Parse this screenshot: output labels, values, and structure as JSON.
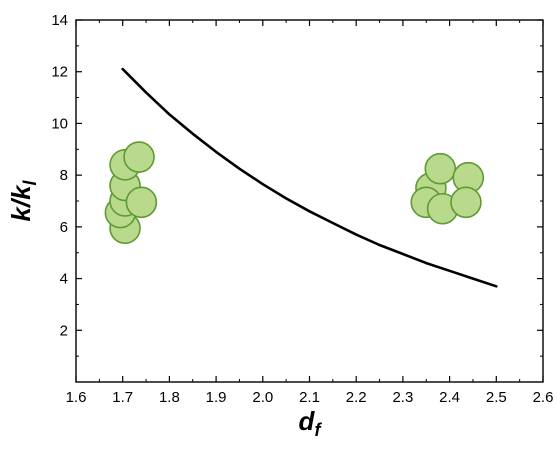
{
  "chart_data": {
    "type": "line",
    "title": "",
    "xlabel": "d",
    "xlabel_sub": "f",
    "ylabel": "k/k",
    "ylabel_sub": "l",
    "xlim": [
      1.6,
      2.6
    ],
    "ylim": [
      0,
      14
    ],
    "xticks": [
      "1.6",
      "1.7",
      "1.8",
      "1.9",
      "2.0",
      "2.1",
      "2.2",
      "2.3",
      "2.4",
      "2.5",
      "2.6"
    ],
    "yticks": [
      "2",
      "4",
      "6",
      "8",
      "10",
      "12",
      "14"
    ],
    "grid": false,
    "series": [
      {
        "x": [
          1.7,
          1.75,
          1.8,
          1.85,
          1.9,
          1.95,
          2.0,
          2.05,
          2.1,
          2.15,
          2.2,
          2.25,
          2.3,
          2.35,
          2.4,
          2.45,
          2.5
        ],
        "y": [
          12.1,
          11.2,
          10.35,
          9.6,
          8.9,
          8.25,
          7.65,
          7.1,
          6.6,
          6.15,
          5.7,
          5.3,
          4.95,
          4.6,
          4.3,
          4.0,
          3.7
        ],
        "color": "#000000"
      }
    ],
    "illustrations": [
      {
        "name": "loose-aggregate",
        "fill": "#b9d98c",
        "stroke": "#5f9a35",
        "circles": [
          {
            "x": 1.705,
            "y": 5.95
          },
          {
            "x": 1.695,
            "y": 6.55
          },
          {
            "x": 1.705,
            "y": 7.0
          },
          {
            "x": 1.705,
            "y": 7.6
          },
          {
            "x": 1.705,
            "y": 8.4
          },
          {
            "x": 1.735,
            "y": 8.7
          },
          {
            "x": 1.74,
            "y": 6.95
          }
        ]
      },
      {
        "name": "compact-aggregate",
        "fill": "#b9d98c",
        "stroke": "#5f9a35",
        "circles": [
          {
            "x": 2.36,
            "y": 7.5
          },
          {
            "x": 2.35,
            "y": 6.95
          },
          {
            "x": 2.385,
            "y": 6.7
          },
          {
            "x": 2.38,
            "y": 8.25
          },
          {
            "x": 2.44,
            "y": 7.9
          },
          {
            "x": 2.435,
            "y": 6.95
          }
        ]
      }
    ]
  }
}
